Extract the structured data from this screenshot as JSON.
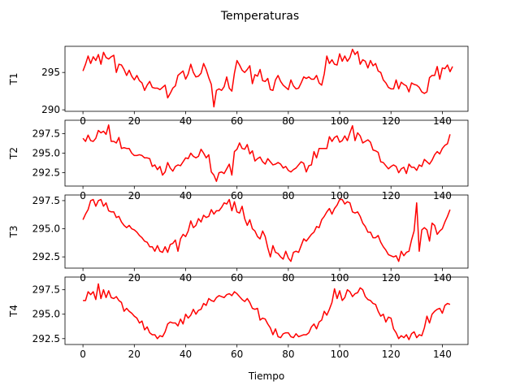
{
  "figure": {
    "title": "Temperaturas",
    "xlabel": "Tiempo"
  },
  "chart_data": [
    {
      "type": "line",
      "ylabel": "T1",
      "xlim": [
        -7,
        150
      ],
      "ylim": [
        289.8,
        298.5
      ],
      "xticks": [
        0,
        20,
        40,
        60,
        80,
        100,
        120,
        140
      ],
      "yticks": [
        290,
        295
      ],
      "series": [
        {
          "color": "#ff0000",
          "x0": 0,
          "values": [
            295.2,
            296.1,
            297.2,
            296.2,
            297.1,
            296.6,
            297.4,
            296.1,
            297.7,
            297.0,
            296.8,
            297.1,
            297.3,
            295.0,
            296.1,
            296.0,
            295.4,
            294.6,
            295.3,
            294.5,
            294.0,
            294.6,
            293.9,
            293.6,
            292.6,
            293.3,
            293.8,
            293.0,
            292.9,
            292.9,
            292.7,
            293.0,
            293.3,
            291.6,
            292.2,
            292.9,
            293.2,
            294.6,
            294.9,
            295.2,
            294.1,
            294.8,
            296.1,
            295.0,
            294.4,
            294.5,
            294.9,
            296.2,
            295.4,
            294.3,
            293.4,
            290.4,
            292.6,
            292.8,
            292.6,
            293.1,
            294.4,
            292.9,
            292.5,
            294.9,
            296.6,
            296.0,
            295.3,
            295.0,
            295.4,
            295.9,
            293.5,
            294.7,
            294.5,
            295.4,
            293.9,
            293.8,
            294.2,
            292.7,
            292.6,
            294.0,
            294.6,
            293.8,
            293.3,
            293.0,
            292.7,
            294.0,
            293.2,
            292.8,
            292.9,
            293.6,
            294.4,
            294.2,
            294.4,
            294.1,
            294.1,
            294.6,
            293.6,
            293.3,
            294.8,
            297.2,
            296.2,
            296.7,
            296.1,
            296.0,
            297.5,
            296.5,
            297.2,
            296.5,
            297.0,
            298.1,
            297.4,
            297.8,
            296.1,
            296.7,
            296.5,
            295.6,
            296.6,
            295.9,
            296.2,
            295.2,
            295.0,
            294.0,
            293.6,
            293.0,
            292.8,
            292.8,
            294.0,
            292.8,
            293.7,
            293.4,
            293.2,
            292.4,
            293.6,
            293.4,
            293.3,
            293.0,
            292.4,
            292.2,
            292.4,
            294.3,
            294.6,
            294.6,
            295.8,
            294.1,
            295.6,
            295.5,
            296.0,
            295.1,
            295.8
          ]
        }
      ]
    },
    {
      "type": "line",
      "ylabel": "T2",
      "xlim": [
        -7,
        150
      ],
      "ylim": [
        290.8,
        299.2
      ],
      "xticks": [
        0,
        20,
        40,
        60,
        80,
        100,
        120,
        140
      ],
      "yticks": [
        292.5,
        295.0,
        297.5
      ],
      "series": [
        {
          "color": "#ff0000",
          "x0": 0,
          "values": [
            296.9,
            296.5,
            297.3,
            296.6,
            296.5,
            296.9,
            297.9,
            297.6,
            297.8,
            297.4,
            298.6,
            296.5,
            296.5,
            296.3,
            297.0,
            295.6,
            295.7,
            295.6,
            295.6,
            295.0,
            294.7,
            294.7,
            294.8,
            294.7,
            294.4,
            294.4,
            294.3,
            293.3,
            293.5,
            292.9,
            293.3,
            292.2,
            292.6,
            293.8,
            293.1,
            292.7,
            293.3,
            293.5,
            293.4,
            293.9,
            294.4,
            294.3,
            295.0,
            294.6,
            294.4,
            294.6,
            295.5,
            295.0,
            294.4,
            294.8,
            292.6,
            292.2,
            291.4,
            292.5,
            292.6,
            292.4,
            293.0,
            293.6,
            292.2,
            295.2,
            295.5,
            296.3,
            295.6,
            295.5,
            296.1,
            294.9,
            295.3,
            294.0,
            294.3,
            294.5,
            293.9,
            293.6,
            294.3,
            293.9,
            293.5,
            293.6,
            293.8,
            293.6,
            293.1,
            293.3,
            292.8,
            292.6,
            292.9,
            293.1,
            293.5,
            293.9,
            293.7,
            292.6,
            293.4,
            293.5,
            295.2,
            294.4,
            295.6,
            295.6,
            295.6,
            295.6,
            297.1,
            296.5,
            297.0,
            297.2,
            296.4,
            296.6,
            297.2,
            296.6,
            297.6,
            298.5,
            296.6,
            297.6,
            297.2,
            296.3,
            296.5,
            296.7,
            296.4,
            295.4,
            295.3,
            295.1,
            293.9,
            293.8,
            293.4,
            293.0,
            293.3,
            293.5,
            293.3,
            292.5,
            293.0,
            293.2,
            292.4,
            293.6,
            293.2,
            293.2,
            292.8,
            293.5,
            293.3,
            294.2,
            293.9,
            293.6,
            294.1,
            294.8,
            295.2,
            294.9,
            295.6,
            296.0,
            296.2,
            297.4
          ]
        }
      ]
    },
    {
      "type": "line",
      "ylabel": "T3",
      "xlim": [
        -7,
        150
      ],
      "ylim": [
        291.5,
        298.0
      ],
      "xticks": [
        0,
        20,
        40,
        60,
        80,
        100,
        120,
        140
      ],
      "yticks": [
        292.5,
        295.0,
        297.5
      ],
      "series": [
        {
          "color": "#ff0000",
          "x0": 0,
          "values": [
            295.8,
            296.3,
            296.7,
            297.5,
            297.6,
            297.0,
            297.5,
            297.6,
            297.0,
            297.3,
            296.6,
            296.5,
            296.5,
            296.0,
            296.1,
            295.6,
            295.3,
            295.1,
            295.3,
            295.0,
            294.9,
            294.7,
            294.4,
            294.2,
            293.9,
            293.8,
            293.4,
            293.4,
            293.0,
            293.5,
            293.0,
            292.9,
            293.4,
            292.9,
            293.6,
            293.7,
            294.0,
            293.0,
            294.1,
            294.5,
            294.3,
            294.8,
            295.7,
            295.1,
            295.3,
            295.9,
            295.6,
            296.2,
            296.0,
            296.1,
            296.7,
            296.3,
            296.6,
            296.6,
            296.9,
            297.3,
            297.2,
            297.6,
            296.6,
            297.4,
            296.5,
            296.4,
            297.0,
            295.9,
            295.3,
            295.8,
            295.0,
            294.8,
            294.3,
            294.1,
            294.8,
            294.3,
            293.3,
            292.5,
            293.5,
            292.9,
            292.8,
            292.5,
            292.3,
            293.0,
            292.4,
            292.1,
            292.9,
            293.0,
            292.9,
            293.5,
            294.1,
            293.9,
            294.2,
            294.5,
            294.7,
            295.2,
            295.1,
            295.8,
            296.1,
            296.5,
            296.8,
            296.3,
            296.8,
            297.1,
            297.6,
            297.6,
            297.2,
            297.4,
            297.3,
            296.5,
            296.4,
            296.5,
            296.1,
            295.5,
            295.2,
            294.7,
            294.7,
            294.2,
            294.2,
            294.4,
            293.8,
            293.4,
            293.1,
            292.7,
            292.6,
            292.5,
            292.6,
            292.1,
            293.0,
            292.6,
            292.9,
            293.0,
            294.0,
            294.8,
            297.3,
            293.0,
            294.9,
            295.1,
            294.9,
            293.9,
            295.5,
            295.3,
            294.5,
            294.8,
            295.0,
            295.6,
            296.1,
            296.7
          ]
        }
      ]
    },
    {
      "type": "line",
      "ylabel": "T4",
      "xlim": [
        -7,
        150
      ],
      "ylim": [
        291.9,
        298.8
      ],
      "xticks": [
        0,
        20,
        40,
        60,
        80,
        100,
        120,
        140
      ],
      "yticks": [
        292.5,
        295.0,
        297.5
      ],
      "series": [
        {
          "color": "#ff0000",
          "x0": 0,
          "values": [
            296.4,
            296.4,
            297.3,
            297.0,
            297.3,
            296.5,
            298.1,
            296.6,
            297.5,
            296.7,
            297.4,
            296.7,
            296.6,
            296.8,
            296.4,
            296.2,
            295.3,
            295.6,
            295.3,
            295.1,
            294.8,
            294.6,
            294.1,
            294.3,
            293.4,
            293.7,
            293.1,
            292.9,
            292.9,
            292.5,
            292.8,
            292.7,
            293.2,
            294.0,
            294.2,
            294.1,
            294.1,
            293.8,
            294.5,
            294.0,
            295.0,
            294.6,
            294.9,
            295.5,
            295.0,
            295.4,
            295.5,
            296.1,
            295.9,
            296.6,
            296.4,
            296.3,
            296.7,
            296.9,
            296.8,
            296.7,
            297.0,
            297.1,
            296.9,
            297.3,
            297.1,
            296.8,
            296.5,
            296.3,
            296.6,
            296.2,
            295.6,
            295.5,
            295.6,
            294.4,
            294.6,
            294.5,
            294.0,
            293.6,
            292.9,
            293.5,
            292.7,
            292.6,
            293.0,
            293.1,
            293.1,
            292.7,
            292.6,
            293.0,
            292.7,
            292.8,
            292.9,
            292.9,
            293.1,
            293.7,
            294.0,
            293.5,
            294.2,
            294.4,
            295.3,
            294.9,
            295.5,
            296.2,
            297.6,
            296.6,
            297.4,
            296.4,
            296.7,
            297.5,
            297.3,
            296.8,
            297.1,
            297.2,
            297.7,
            297.5,
            296.8,
            296.5,
            296.4,
            296.1,
            296.0,
            295.3,
            294.8,
            295.0,
            294.2,
            294.7,
            294.6,
            293.5,
            293.1,
            292.5,
            292.8,
            292.6,
            292.9,
            292.4,
            293.0,
            293.2,
            292.6,
            292.9,
            292.8,
            293.6,
            294.8,
            294.1,
            295.0,
            295.3,
            295.5,
            295.6,
            295.1,
            295.9,
            296.1,
            296.0
          ]
        }
      ]
    }
  ]
}
